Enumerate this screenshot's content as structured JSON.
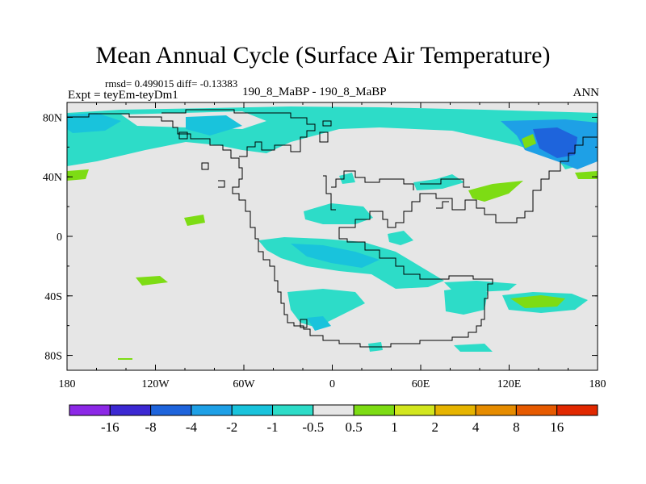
{
  "title": "Mean Annual Cycle (Surface Air Temperature)",
  "stats": "rmsd= 0.499015 diff= -0.13383",
  "experiment": "Expt = teyEm-teyDm1",
  "case_label": "190_8_MaBP - 190_8_MaBP",
  "season": "ANN",
  "map": {
    "lat_labels": [
      "80N",
      "40N",
      "0",
      "40S",
      "80S"
    ],
    "lon_labels": [
      "180",
      "120W",
      "60W",
      "0",
      "60E",
      "120E",
      "180"
    ]
  },
  "colorbar": {
    "colors": [
      "#8c28e6",
      "#3c28d2",
      "#1e64dc",
      "#1ea0e6",
      "#19c3dc",
      "#2ddcc8",
      "#e6e6e6",
      "#7ddc14",
      "#d2e61e",
      "#e6b400",
      "#e68c00",
      "#e65a00",
      "#e12800"
    ],
    "labels": [
      "-16",
      "-8",
      "-4",
      "-2",
      "-1",
      "-0.5",
      "0.5",
      "1",
      "2",
      "4",
      "8",
      "16"
    ],
    "background": "#e6e6e6"
  }
}
